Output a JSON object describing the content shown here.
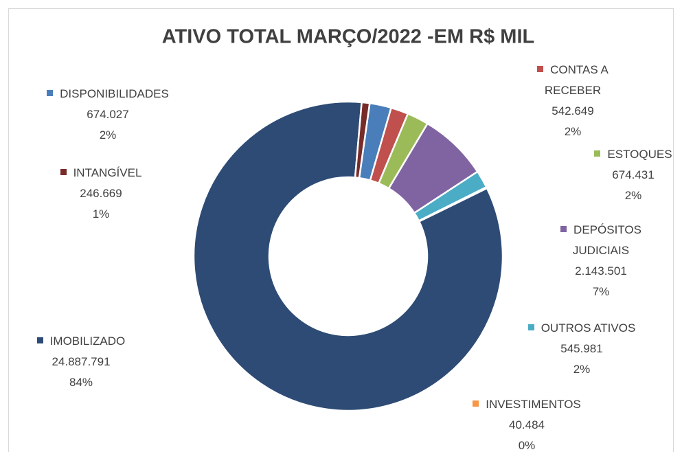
{
  "chart_data": {
    "type": "donut",
    "title": "ATIVO TOTAL MARÇO/2022 -EM R$ MIL",
    "categories": [
      "DISPONIBILIDADES",
      "CONTAS A RECEBER",
      "ESTOQUES",
      "DEPÓSITOS JUDICIAIS",
      "OUTROS ATIVOS",
      "INVESTIMENTOS",
      "IMOBILIZADO",
      "INTANGÍVEL"
    ],
    "values": [
      674027,
      542649,
      674431,
      2143501,
      545981,
      40484,
      24887791,
      246669
    ],
    "value_labels": [
      "674.027",
      "542.649",
      "674.431",
      "2.143.501",
      "545.981",
      "40.484",
      "24.887.791",
      "246.669"
    ],
    "percentages": [
      2,
      2,
      2,
      7,
      2,
      0,
      84,
      1
    ],
    "percentage_labels": [
      "2%",
      "2%",
      "2%",
      "7%",
      "2%",
      "0%",
      "84%",
      "1%"
    ],
    "colors": [
      "#4a7ebb",
      "#c0504d",
      "#9bbb59",
      "#8064a2",
      "#4bacc6",
      "#f79646",
      "#2d4b74",
      "#772c2a"
    ]
  }
}
